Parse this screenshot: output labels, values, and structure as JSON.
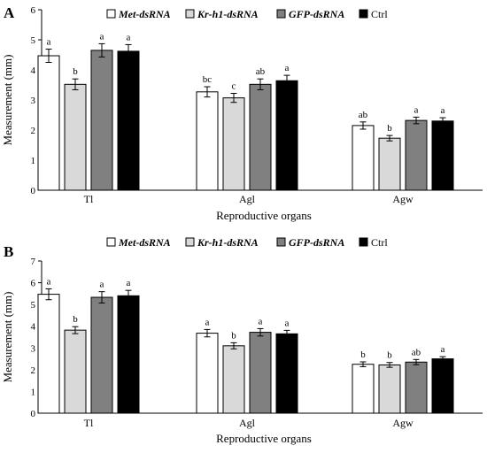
{
  "chart_data": [
    {
      "type": "bar",
      "panel_label": "A",
      "categories": [
        "Tl",
        "Agl",
        "Agw"
      ],
      "series": [
        {
          "name": "Met-dsRNA",
          "color": "#ffffff",
          "values": [
            4.47,
            3.27,
            2.15
          ],
          "errors": [
            0.22,
            0.17,
            0.12
          ],
          "letters": [
            "a",
            "bc",
            "ab"
          ]
        },
        {
          "name": "Kr-h1-dsRNA",
          "color": "#d9d9d9",
          "values": [
            3.52,
            3.07,
            1.73
          ],
          "errors": [
            0.18,
            0.15,
            0.09
          ],
          "letters": [
            "b",
            "c",
            "b"
          ]
        },
        {
          "name": "GFP-dsRNA",
          "color": "#808080",
          "values": [
            4.65,
            3.52,
            2.32
          ],
          "errors": [
            0.22,
            0.18,
            0.11
          ],
          "letters": [
            "a",
            "ab",
            "a"
          ]
        },
        {
          "name": "Ctrl",
          "color": "#000000",
          "values": [
            4.62,
            3.64,
            2.3
          ],
          "errors": [
            0.22,
            0.18,
            0.11
          ],
          "letters": [
            "a",
            "a",
            "a"
          ]
        }
      ],
      "ylabel": "Measurement (mm)",
      "xlabel": "Reproductive organs",
      "ylim": [
        0,
        6
      ],
      "yticks": [
        "0",
        "1",
        "2",
        "3",
        "4",
        "5",
        "6"
      ],
      "grid": false,
      "legend_position": "top"
    },
    {
      "type": "bar",
      "panel_label": "B",
      "categories": [
        "Tl",
        "Agl",
        "Agw"
      ],
      "series": [
        {
          "name": "Met-dsRNA",
          "color": "#ffffff",
          "values": [
            5.47,
            3.68,
            2.25
          ],
          "errors": [
            0.25,
            0.17,
            0.11
          ],
          "letters": [
            "a",
            "a",
            "b"
          ]
        },
        {
          "name": "Kr-h1-dsRNA",
          "color": "#d9d9d9",
          "values": [
            3.82,
            3.1,
            2.22
          ],
          "errors": [
            0.16,
            0.14,
            0.11
          ],
          "letters": [
            "b",
            "b",
            "b"
          ]
        },
        {
          "name": "GFP-dsRNA",
          "color": "#808080",
          "values": [
            5.33,
            3.72,
            2.35
          ],
          "errors": [
            0.26,
            0.17,
            0.12
          ],
          "letters": [
            "a",
            "a",
            "ab"
          ]
        },
        {
          "name": "Ctrl",
          "color": "#000000",
          "values": [
            5.4,
            3.65,
            2.5
          ],
          "errors": [
            0.25,
            0.16,
            0.1
          ],
          "letters": [
            "a",
            "a",
            "a"
          ]
        }
      ],
      "ylabel": "Measurement (mm)",
      "xlabel": "Reproductive organs",
      "ylim": [
        0,
        7
      ],
      "yticks": [
        "0",
        "1",
        "2",
        "3",
        "4",
        "5",
        "6",
        "7"
      ],
      "grid": false,
      "legend_position": "top"
    }
  ]
}
